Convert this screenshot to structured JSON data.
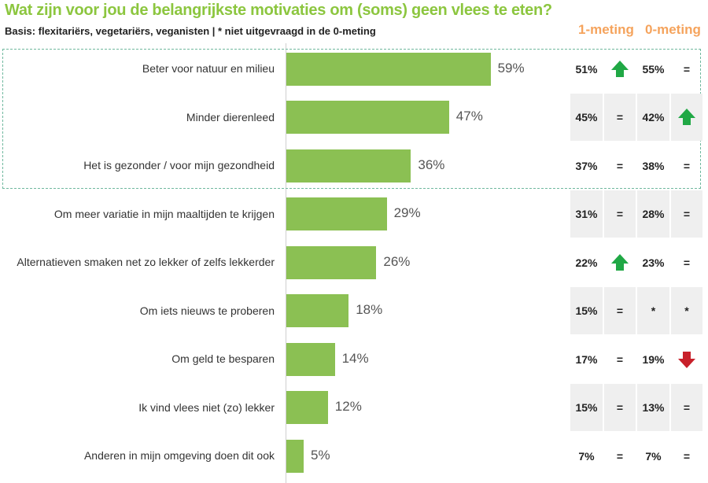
{
  "chart_data": {
    "type": "bar",
    "orientation": "horizontal",
    "title": "Wat zijn voor jou de belangrijkste motivaties om (soms) geen vlees te eten?",
    "subtitle": "Basis: flexitariërs, vegetariërs, veganisten | * niet uitgevraagd in de 0-meting",
    "xlim": [
      0,
      100
    ],
    "unit": "%",
    "categories": [
      "Beter voor natuur en milieu",
      "Minder dierenleed",
      "Het is gezonder / voor mijn gezondheid",
      "Om meer variatie in mijn maaltijden te krijgen",
      "Alternatieven smaken net zo lekker of zelfs lekkerder",
      "Om iets nieuws te proberen",
      "Om geld te besparen",
      "Ik vind vlees niet (zo) lekker",
      "Anderen in mijn omgeving doen dit ook"
    ],
    "values": [
      59,
      47,
      36,
      29,
      26,
      18,
      14,
      12,
      5
    ],
    "value_labels": [
      "59%",
      "47%",
      "36%",
      "29%",
      "26%",
      "18%",
      "14%",
      "12%",
      "5%"
    ],
    "comparison_headers": [
      "1-meting",
      "0-meting"
    ],
    "comparisons": [
      {
        "m1": "51%",
        "m1_change": "up",
        "m0": "55%",
        "m0_change": "="
      },
      {
        "m1": "45%",
        "m1_change": "=",
        "m0": "42%",
        "m0_change": "up"
      },
      {
        "m1": "37%",
        "m1_change": "=",
        "m0": "38%",
        "m0_change": "="
      },
      {
        "m1": "31%",
        "m1_change": "=",
        "m0": "28%",
        "m0_change": "="
      },
      {
        "m1": "22%",
        "m1_change": "up",
        "m0": "23%",
        "m0_change": "="
      },
      {
        "m1": "15%",
        "m1_change": "=",
        "m0": "*",
        "m0_change": "*"
      },
      {
        "m1": "17%",
        "m1_change": "=",
        "m0": "19%",
        "m0_change": "down"
      },
      {
        "m1": "15%",
        "m1_change": "=",
        "m0": "13%",
        "m0_change": "="
      },
      {
        "m1": "7%",
        "m1_change": "=",
        "m0": "7%",
        "m0_change": "="
      }
    ],
    "highlighted_top_rows": 3,
    "colors": {
      "bar": "#8bc053",
      "title": "#8cc63f",
      "header": "#f5a35c",
      "up": "#20a845",
      "down": "#c8202a"
    }
  }
}
